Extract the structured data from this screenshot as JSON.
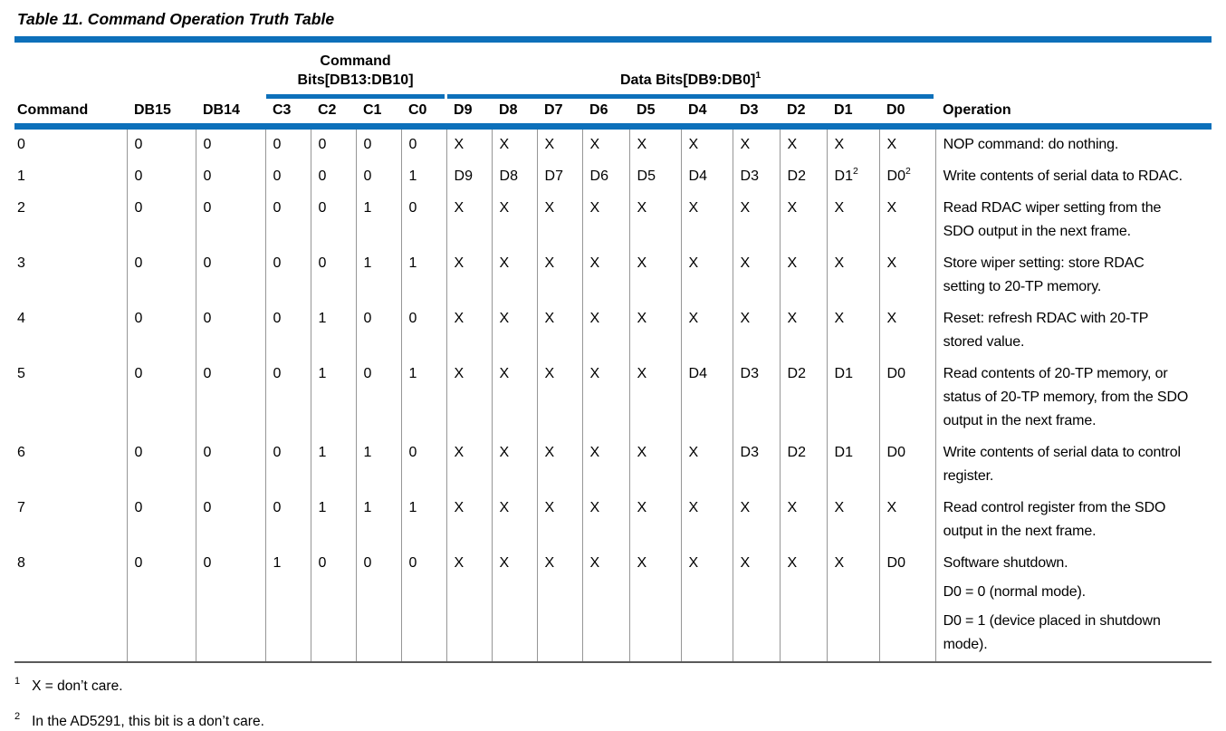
{
  "page": {
    "title": "Table 11. Command Operation Truth Table"
  },
  "colors": {
    "accent_blue": "#0d70ba",
    "column_separator_gray": "#969696",
    "table_bottom_rule": "#5a5a5a"
  },
  "table": {
    "group_headers": {
      "command_bits": {
        "lines": [
          "Command",
          "Bits[DB13:DB10]"
        ]
      },
      "data_bits": {
        "lines": [
          "Data Bits[DB9:DB0]|1"
        ]
      }
    },
    "columns": [
      {
        "key": "command",
        "label": "Command"
      },
      {
        "key": "db15",
        "label": "DB15"
      },
      {
        "key": "db14",
        "label": "DB14"
      },
      {
        "key": "c3",
        "label": "C3"
      },
      {
        "key": "c2",
        "label": "C2"
      },
      {
        "key": "c1",
        "label": "C1"
      },
      {
        "key": "c0",
        "label": "C0"
      },
      {
        "key": "d9",
        "label": "D9"
      },
      {
        "key": "d8",
        "label": "D8"
      },
      {
        "key": "d7",
        "label": "D7"
      },
      {
        "key": "d6",
        "label": "D6"
      },
      {
        "key": "d5",
        "label": "D5"
      },
      {
        "key": "d4",
        "label": "D4"
      },
      {
        "key": "d3",
        "label": "D3"
      },
      {
        "key": "d2",
        "label": "D2"
      },
      {
        "key": "d1",
        "label": "D1"
      },
      {
        "key": "d0",
        "label": "D0"
      },
      {
        "key": "operation",
        "label": "Operation"
      }
    ],
    "rows": [
      {
        "cells": [
          "0",
          "0",
          "0",
          "0",
          "0",
          "0",
          "0",
          "X",
          "X",
          "X",
          "X",
          "X",
          "X",
          "X",
          "X",
          "X",
          "X"
        ],
        "operation": [
          "NOP command: do nothing."
        ]
      },
      {
        "cells": [
          "1",
          "0",
          "0",
          "0",
          "0",
          "0",
          "1",
          "D9",
          "D8",
          "D7",
          "D6",
          "D5",
          "D4",
          "D3",
          "D2",
          "D1|2",
          "D0|2"
        ],
        "operation": [
          "Write contents of serial data to RDAC."
        ]
      },
      {
        "cells": [
          "2",
          "0",
          "0",
          "0",
          "0",
          "1",
          "0",
          "X",
          "X",
          "X",
          "X",
          "X",
          "X",
          "X",
          "X",
          "X",
          "X"
        ],
        "operation": [
          "Read RDAC wiper setting from the\nSDO output in the next frame."
        ]
      },
      {
        "cells": [
          "3",
          "0",
          "0",
          "0",
          "0",
          "1",
          "1",
          "X",
          "X",
          "X",
          "X",
          "X",
          "X",
          "X",
          "X",
          "X",
          "X"
        ],
        "operation": [
          "Store wiper setting: store RDAC\nsetting to 20-TP memory."
        ]
      },
      {
        "cells": [
          "4",
          "0",
          "0",
          "0",
          "1",
          "0",
          "0",
          "X",
          "X",
          "X",
          "X",
          "X",
          "X",
          "X",
          "X",
          "X",
          "X"
        ],
        "operation": [
          "Reset: refresh RDAC with 20-TP\nstored value."
        ]
      },
      {
        "cells": [
          "5",
          "0",
          "0",
          "0",
          "1",
          "0",
          "1",
          "X",
          "X",
          "X",
          "X",
          "X",
          "D4",
          "D3",
          "D2",
          "D1",
          "D0"
        ],
        "operation": [
          "Read contents of 20-TP memory, or\nstatus of 20-TP memory, from the SDO\noutput in the next frame."
        ]
      },
      {
        "cells": [
          "6",
          "0",
          "0",
          "0",
          "1",
          "1",
          "0",
          "X",
          "X",
          "X",
          "X",
          "X",
          "X",
          "D3",
          "D2",
          "D1",
          "D0"
        ],
        "operation": [
          "Write contents of serial data to control\nregister."
        ]
      },
      {
        "cells": [
          "7",
          "0",
          "0",
          "0",
          "1",
          "1",
          "1",
          "X",
          "X",
          "X",
          "X",
          "X",
          "X",
          "X",
          "X",
          "X",
          "X"
        ],
        "operation": [
          "Read control register from the SDO\noutput in the next frame."
        ]
      },
      {
        "cells": [
          "8",
          "0",
          "0",
          "1",
          "0",
          "0",
          "0",
          "X",
          "X",
          "X",
          "X",
          "X",
          "X",
          "X",
          "X",
          "X",
          "D0"
        ],
        "operation": [
          "Software shutdown.",
          "D0 = 0 (normal mode).",
          "D0 = 1 (device placed in shutdown\nmode)."
        ]
      }
    ]
  },
  "footnotes": [
    {
      "marker": "1",
      "text": "X = don’t care."
    },
    {
      "marker": "2",
      "text": "In the AD5291, this bit is a don’t care."
    }
  ]
}
